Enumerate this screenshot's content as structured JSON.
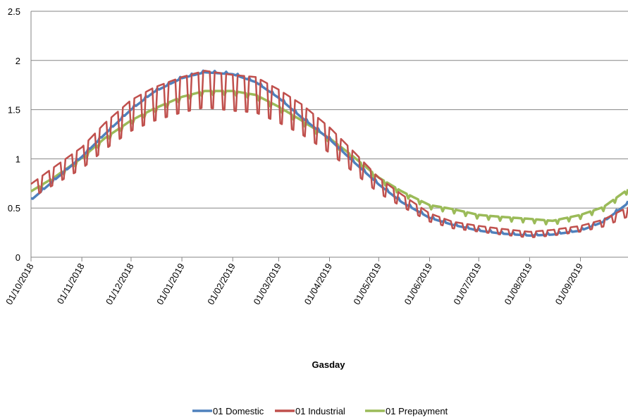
{
  "chart_data": {
    "type": "line",
    "title": "",
    "xlabel": "Gasday",
    "ylabel": "",
    "ylim": [
      0,
      2.5
    ],
    "y_ticks": [
      "0",
      "0.5",
      "1",
      "1.5",
      "2",
      "2.5"
    ],
    "x_ticks": [
      "01/10/2018",
      "01/11/2018",
      "01/12/2018",
      "01/01/2019",
      "01/02/2019",
      "01/03/2019",
      "01/04/2019",
      "01/05/2019",
      "01/06/2019",
      "01/07/2019",
      "01/08/2019",
      "01/09/2019"
    ],
    "x_range": [
      "2018-10-01",
      "2019-09-30"
    ],
    "grid": "horizontal",
    "legend_position": "bottom",
    "series": [
      {
        "name": "01 Domestic",
        "color": "#4f81bd",
        "points": [
          [
            "2018-10-01",
            0.58
          ],
          [
            "2018-10-15",
            0.78
          ],
          [
            "2018-11-01",
            1.02
          ],
          [
            "2018-11-15",
            1.25
          ],
          [
            "2018-12-01",
            1.5
          ],
          [
            "2018-12-15",
            1.68
          ],
          [
            "2019-01-01",
            1.82
          ],
          [
            "2019-01-15",
            1.88
          ],
          [
            "2019-02-01",
            1.86
          ],
          [
            "2019-02-15",
            1.78
          ],
          [
            "2019-03-01",
            1.62
          ],
          [
            "2019-03-15",
            1.42
          ],
          [
            "2019-04-01",
            1.2
          ],
          [
            "2019-04-15",
            0.98
          ],
          [
            "2019-05-01",
            0.74
          ],
          [
            "2019-05-15",
            0.56
          ],
          [
            "2019-06-01",
            0.4
          ],
          [
            "2019-06-15",
            0.33
          ],
          [
            "2019-07-01",
            0.27
          ],
          [
            "2019-07-15",
            0.24
          ],
          [
            "2019-08-01",
            0.22
          ],
          [
            "2019-08-15",
            0.23
          ],
          [
            "2019-09-01",
            0.27
          ],
          [
            "2019-09-15",
            0.36
          ],
          [
            "2019-09-30",
            0.55
          ]
        ]
      },
      {
        "name": "01 Industrial",
        "color": "#c0504d",
        "points": [
          [
            "2018-10-01",
            0.7
          ],
          [
            "2018-10-15",
            0.86
          ],
          [
            "2018-11-01",
            1.05
          ],
          [
            "2018-11-15",
            1.28
          ],
          [
            "2018-12-01",
            1.5
          ],
          [
            "2018-12-15",
            1.62
          ],
          [
            "2019-01-01",
            1.72
          ],
          [
            "2019-01-15",
            1.78
          ],
          [
            "2019-02-01",
            1.74
          ],
          [
            "2019-02-15",
            1.72
          ],
          [
            "2019-03-01",
            1.6
          ],
          [
            "2019-03-15",
            1.46
          ],
          [
            "2019-04-01",
            1.24
          ],
          [
            "2019-04-15",
            1.02
          ],
          [
            "2019-05-01",
            0.76
          ],
          [
            "2019-05-15",
            0.6
          ],
          [
            "2019-06-01",
            0.42
          ],
          [
            "2019-06-15",
            0.34
          ],
          [
            "2019-07-01",
            0.3
          ],
          [
            "2019-07-15",
            0.27
          ],
          [
            "2019-08-01",
            0.24
          ],
          [
            "2019-08-15",
            0.26
          ],
          [
            "2019-09-01",
            0.3
          ],
          [
            "2019-09-15",
            0.36
          ],
          [
            "2019-09-30",
            0.48
          ]
        ]
      },
      {
        "name": "01 Prepayment",
        "color": "#9bbb59",
        "points": [
          [
            "2018-10-01",
            0.66
          ],
          [
            "2018-10-15",
            0.8
          ],
          [
            "2018-11-01",
            1.0
          ],
          [
            "2018-11-15",
            1.2
          ],
          [
            "2018-12-01",
            1.38
          ],
          [
            "2018-12-15",
            1.5
          ],
          [
            "2019-01-01",
            1.62
          ],
          [
            "2019-01-15",
            1.68
          ],
          [
            "2019-02-01",
            1.68
          ],
          [
            "2019-02-15",
            1.64
          ],
          [
            "2019-03-01",
            1.52
          ],
          [
            "2019-03-15",
            1.38
          ],
          [
            "2019-04-01",
            1.2
          ],
          [
            "2019-04-15",
            1.02
          ],
          [
            "2019-05-01",
            0.8
          ],
          [
            "2019-05-15",
            0.66
          ],
          [
            "2019-06-01",
            0.52
          ],
          [
            "2019-06-15",
            0.48
          ],
          [
            "2019-07-01",
            0.42
          ],
          [
            "2019-07-15",
            0.4
          ],
          [
            "2019-08-01",
            0.38
          ],
          [
            "2019-08-15",
            0.36
          ],
          [
            "2019-09-01",
            0.42
          ],
          [
            "2019-09-15",
            0.5
          ],
          [
            "2019-09-30",
            0.68
          ]
        ]
      }
    ]
  }
}
